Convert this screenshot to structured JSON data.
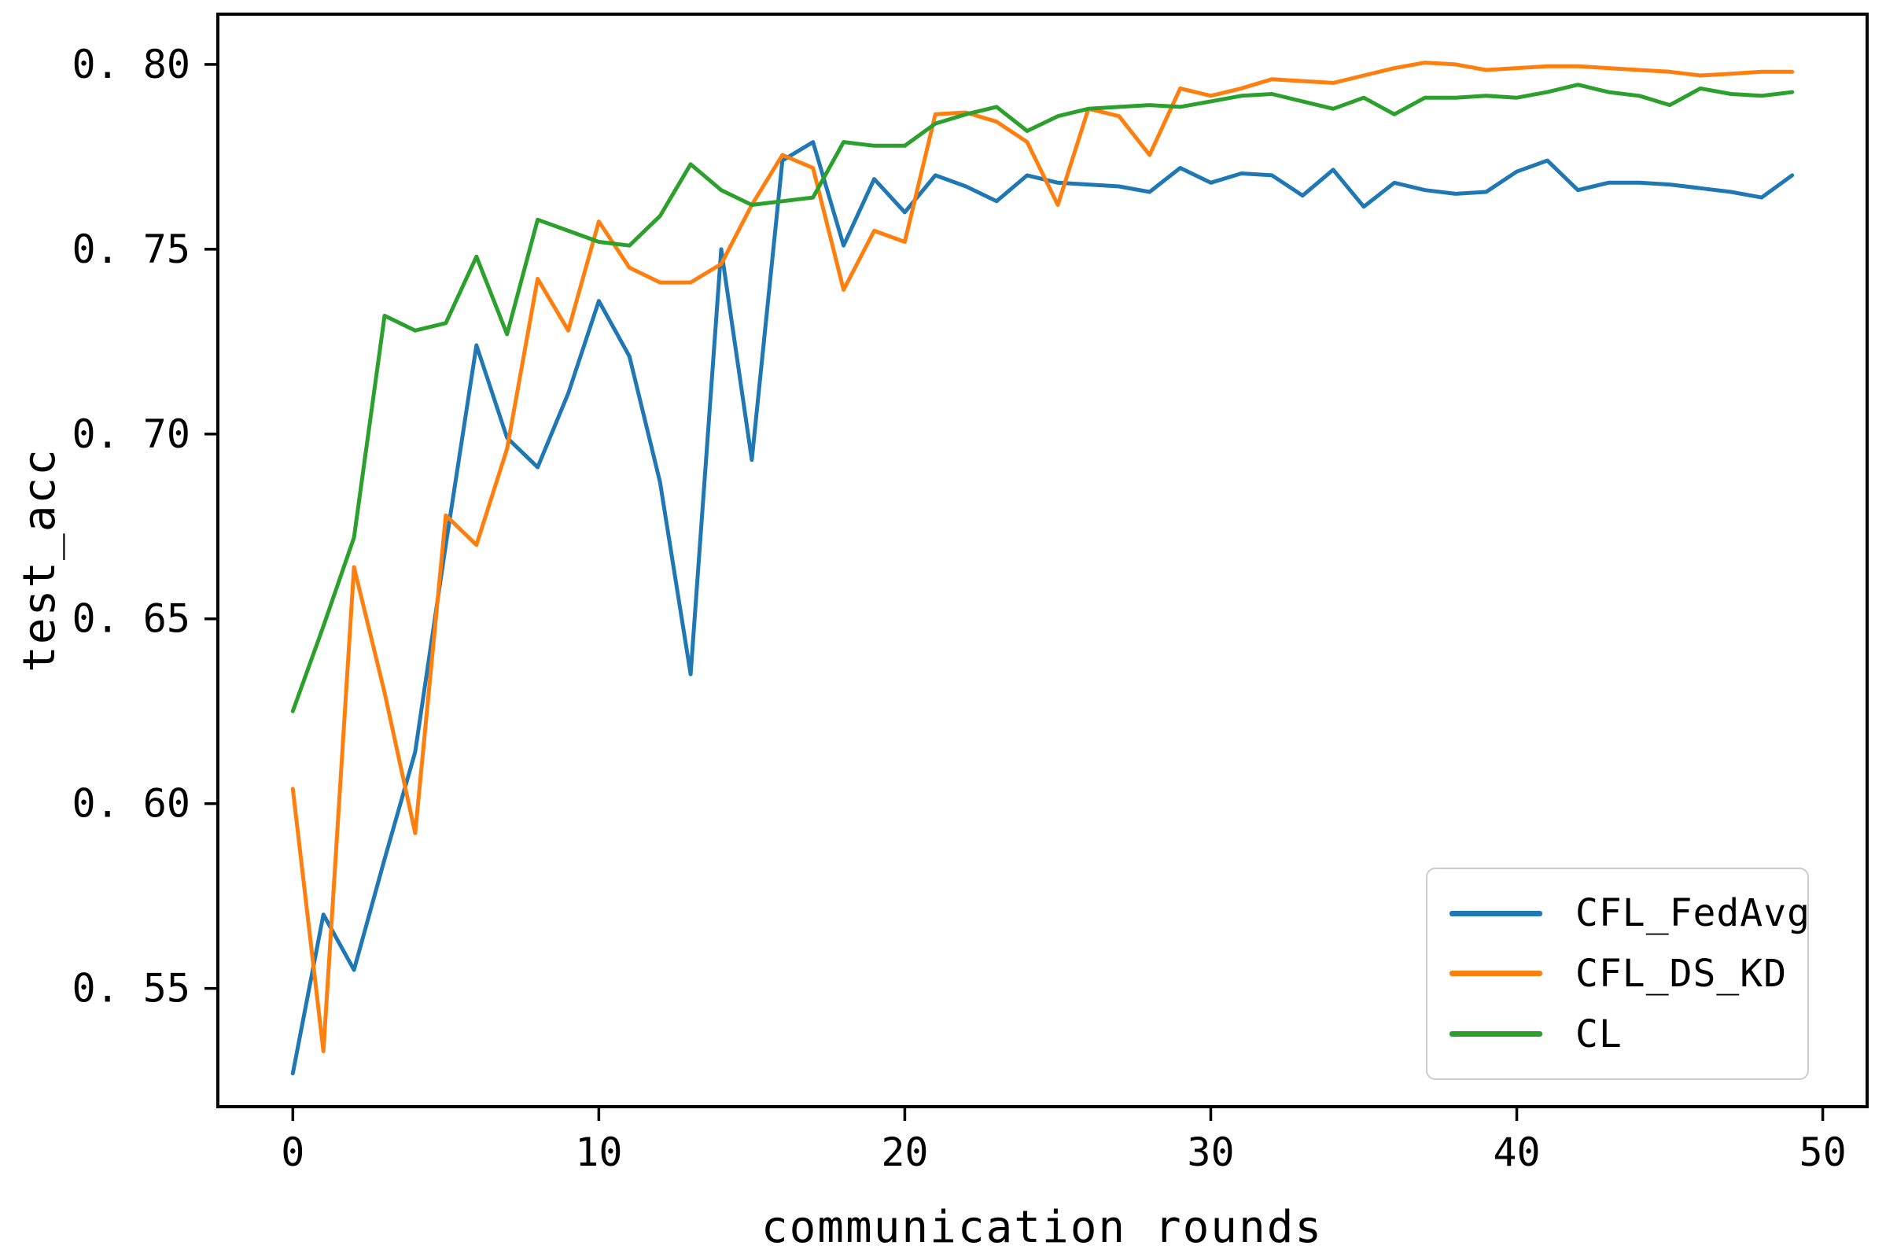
{
  "figure": {
    "xlabel": "communication rounds",
    "ylabel": "test_acc"
  },
  "chart_data": {
    "type": "line",
    "title": "",
    "xlabel": "communication rounds",
    "ylabel": "test_acc",
    "grid": false,
    "legend": {
      "position": "lower right"
    },
    "xlim": [
      -2.45,
      51.45
    ],
    "ylim": [
      0.518,
      0.8136
    ],
    "xticks": {
      "values": [
        0,
        10,
        20,
        30,
        40,
        50
      ],
      "labels": [
        "0",
        "10",
        "20",
        "30",
        "40",
        "50"
      ]
    },
    "yticks": {
      "values": [
        0.55,
        0.6,
        0.65,
        0.7,
        0.75,
        0.8
      ],
      "labels": [
        "0. 55",
        "0. 60",
        "0. 65",
        "0. 70",
        "0. 75",
        "0. 80"
      ]
    },
    "x": [
      0,
      1,
      2,
      3,
      4,
      5,
      6,
      7,
      8,
      9,
      10,
      11,
      12,
      13,
      14,
      15,
      16,
      17,
      18,
      19,
      20,
      21,
      22,
      23,
      24,
      25,
      26,
      27,
      28,
      29,
      30,
      31,
      32,
      33,
      34,
      35,
      36,
      37,
      38,
      39,
      40,
      41,
      42,
      43,
      44,
      45,
      46,
      47,
      48,
      49
    ],
    "series": [
      {
        "name": "CFL_FedAvg",
        "color": "#1f77b4",
        "values": [
          0.527,
          0.57,
          0.555,
          0.585,
          0.614,
          0.67,
          0.724,
          0.699,
          0.691,
          0.711,
          0.736,
          0.721,
          0.687,
          0.635,
          0.75,
          0.693,
          0.774,
          0.779,
          0.751,
          0.769,
          0.76,
          0.77,
          0.767,
          0.763,
          0.77,
          0.768,
          0.7675,
          0.767,
          0.7655,
          0.772,
          0.768,
          0.7705,
          0.77,
          0.7645,
          0.7715,
          0.7615,
          0.768,
          0.766,
          0.765,
          0.7655,
          0.771,
          0.774,
          0.766,
          0.768,
          0.768,
          0.7675,
          0.7665,
          0.7655,
          0.764,
          0.77
        ]
      },
      {
        "name": "CFL_DS_KD",
        "color": "#ff7f0e",
        "values": [
          0.604,
          0.533,
          0.664,
          0.63,
          0.592,
          0.678,
          0.67,
          0.696,
          0.742,
          0.728,
          0.7575,
          0.745,
          0.741,
          0.741,
          0.746,
          0.762,
          0.7755,
          0.772,
          0.739,
          0.755,
          0.752,
          0.7865,
          0.787,
          0.7845,
          0.779,
          0.762,
          0.788,
          0.786,
          0.7755,
          0.7935,
          0.7915,
          0.7935,
          0.796,
          0.7955,
          0.795,
          0.797,
          0.799,
          0.8005,
          0.8,
          0.7985,
          0.799,
          0.7995,
          0.7995,
          0.799,
          0.7985,
          0.798,
          0.797,
          0.7975,
          0.798,
          0.798
        ]
      },
      {
        "name": "CL",
        "color": "#2ca02c",
        "values": [
          0.625,
          0.648,
          0.672,
          0.732,
          0.728,
          0.73,
          0.748,
          0.727,
          0.758,
          0.755,
          0.752,
          0.751,
          0.759,
          0.773,
          0.766,
          0.762,
          0.763,
          0.764,
          0.779,
          0.778,
          0.778,
          0.784,
          0.7865,
          0.7885,
          0.782,
          0.786,
          0.788,
          0.7885,
          0.789,
          0.7885,
          0.79,
          0.7915,
          0.792,
          0.79,
          0.788,
          0.791,
          0.7865,
          0.791,
          0.791,
          0.7915,
          0.791,
          0.7925,
          0.7945,
          0.7925,
          0.7915,
          0.789,
          0.7935,
          0.792,
          0.7915,
          0.7925
        ]
      }
    ]
  }
}
